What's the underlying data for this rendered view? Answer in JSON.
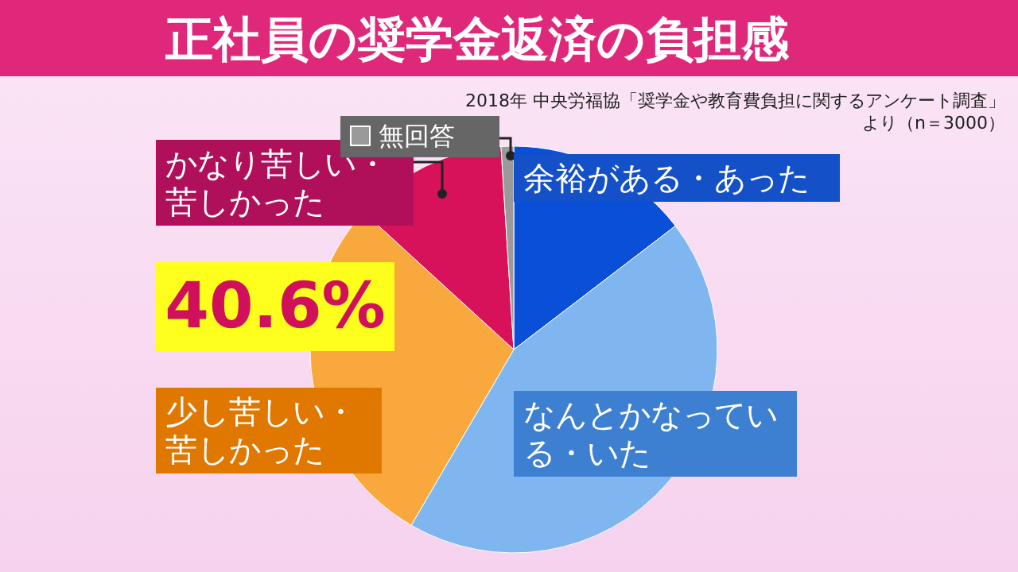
{
  "chart_data": {
    "type": "pie",
    "title": "正社員の奨学金返済の負担感",
    "categories": [
      "余裕がある・あった",
      "なんとかなっている・いた",
      "少し苦しい・苦しかった",
      "かなり苦しい・苦しかった",
      "無回答"
    ],
    "values": [
      14.6,
      43.8,
      28.4,
      12.2,
      1.0
    ],
    "colors": [
      "#0a4fd8",
      "#80b6f0",
      "#f8a83c",
      "#d8125a",
      "#9a9a9a"
    ],
    "annotations": [
      "2018年 中央労福協「奨学金や教育費負担に関するアンケート調査」より（n＝3000）",
      "40.6%"
    ]
  }
}
